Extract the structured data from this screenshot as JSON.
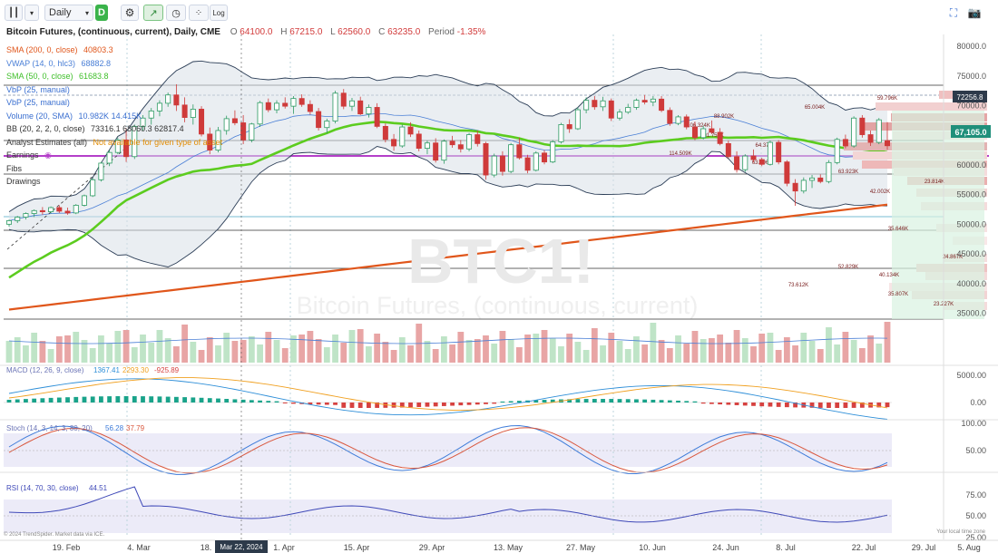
{
  "toolbar": {
    "interval": "Daily",
    "d_badge": "D",
    "log_label": "Log"
  },
  "header": {
    "symbol_title": "Bitcoin Futures, (continuous, current), Daily, CME",
    "o_label": "O",
    "o_value": "64100.0",
    "h_label": "H",
    "h_value": "67215.0",
    "l_label": "L",
    "l_value": "62560.0",
    "c_label": "C",
    "c_value": "63235.0",
    "period_label": "Period",
    "period_value": "-1.35%"
  },
  "legend": [
    {
      "name": "SMA (200, 0, close)",
      "values": "40803.3",
      "color": "#e0561b"
    },
    {
      "name": "VWAP (14, 0, hlc3)",
      "values": "68882.8",
      "color": "#4a7fd6"
    },
    {
      "name": "SMA (50, 0, close)",
      "values": "61683.8",
      "color": "#3fbf2a"
    },
    {
      "name": "VbP (25, manual)",
      "values": "",
      "color": "#3a6fd0"
    },
    {
      "name": "VbP (25, manual)",
      "values": "",
      "color": "#3a6fd0"
    },
    {
      "name": "Volume (20, SMA)",
      "values": "10.982K 14.415K",
      "color": "#3a6fd0"
    },
    {
      "name": "BB (20, 2, 2, 0, close)",
      "values": "73316.1 68060.3 62817.4",
      "color": "#333"
    },
    {
      "name": "Analyst Estimates (all)",
      "values": "Not available for given type of asset",
      "color": "#333",
      "value_color": "#e08a00"
    },
    {
      "name": "Earnings",
      "values": "",
      "color": "#333"
    },
    {
      "name": "Fibs",
      "values": "",
      "color": "#333"
    },
    {
      "name": "Drawings",
      "values": "",
      "color": "#333"
    }
  ],
  "watermark": {
    "ticker": "BTC1!",
    "name": "Bitcoin Futures, (continuous, current)"
  },
  "chart_data": {
    "type": "candlestick",
    "series": [
      {
        "name": "Price",
        "ohlc": [
          [
            50000,
            50800,
            49600,
            50600
          ],
          [
            50600,
            51400,
            50200,
            51200
          ],
          [
            51200,
            52000,
            50800,
            51800
          ],
          [
            51800,
            52500,
            51200,
            52300
          ],
          [
            52300,
            52900,
            51600,
            52100
          ],
          [
            52100,
            53000,
            51800,
            52800
          ],
          [
            52800,
            53200,
            51900,
            52200
          ],
          [
            52200,
            52800,
            51600,
            51900
          ],
          [
            51900,
            53400,
            51700,
            53200
          ],
          [
            53200,
            55000,
            53000,
            54800
          ],
          [
            54800,
            57800,
            54600,
            57500
          ],
          [
            57500,
            60500,
            57200,
            60300
          ],
          [
            60300,
            62500,
            59800,
            62100
          ],
          [
            62100,
            64600,
            61800,
            64200
          ],
          [
            64200,
            66200,
            60500,
            61400
          ],
          [
            61400,
            66800,
            61000,
            66500
          ],
          [
            66500,
            68400,
            65800,
            67900
          ],
          [
            67900,
            69600,
            66800,
            69100
          ],
          [
            69100,
            70900,
            68200,
            70400
          ],
          [
            70400,
            72200,
            69800,
            71800
          ],
          [
            71800,
            73600,
            69100,
            70100
          ],
          [
            70100,
            71400,
            67200,
            68000
          ],
          [
            68000,
            70200,
            66800,
            69400
          ],
          [
            69400,
            69900,
            64800,
            65200
          ],
          [
            65200,
            66300,
            61800,
            62500
          ],
          [
            62500,
            66400,
            62100,
            65800
          ],
          [
            65800,
            68300,
            65100,
            67800
          ],
          [
            67800,
            69200,
            66700,
            67100
          ],
          [
            67100,
            68400,
            63500,
            64200
          ],
          [
            64200,
            67100,
            63800,
            66900
          ],
          [
            66900,
            70800,
            66400,
            70500
          ],
          [
            70500,
            71200,
            68900,
            69300
          ],
          [
            69300,
            70900,
            68700,
            70400
          ],
          [
            70400,
            71400,
            69500,
            69900
          ],
          [
            69900,
            71600,
            68600,
            71200
          ],
          [
            71200,
            71900,
            69800,
            70200
          ],
          [
            70200,
            70900,
            68500,
            69000
          ],
          [
            69000,
            69600,
            65800,
            66300
          ],
          [
            66300,
            67800,
            65300,
            67400
          ],
          [
            67400,
            72500,
            67000,
            72100
          ],
          [
            72100,
            72800,
            69400,
            69900
          ],
          [
            69900,
            71300,
            69100,
            70800
          ],
          [
            70800,
            71500,
            68400,
            68600
          ],
          [
            68600,
            70200,
            68000,
            69700
          ],
          [
            69700,
            70400,
            66200,
            66500
          ],
          [
            66500,
            67000,
            63800,
            64300
          ],
          [
            64300,
            65200,
            62400,
            63200
          ],
          [
            63200,
            66800,
            62900,
            66400
          ],
          [
            66400,
            67200,
            64700,
            65200
          ],
          [
            65200,
            65800,
            62300,
            62800
          ],
          [
            62800,
            64100,
            61800,
            63700
          ],
          [
            63700,
            64500,
            60400,
            60800
          ],
          [
            60800,
            64300,
            60200,
            64000
          ],
          [
            64000,
            64900,
            62900,
            63400
          ],
          [
            63400,
            64200,
            62100,
            62700
          ],
          [
            62700,
            65400,
            62300,
            65100
          ],
          [
            65100,
            65800,
            63100,
            63600
          ],
          [
            63600,
            63900,
            57500,
            58300
          ],
          [
            58300,
            61900,
            57900,
            61500
          ],
          [
            61500,
            62300,
            58200,
            58900
          ],
          [
            58900,
            63700,
            58600,
            63400
          ],
          [
            63400,
            64600,
            60900,
            61200
          ],
          [
            61200,
            61700,
            58600,
            59100
          ],
          [
            59100,
            62300,
            58900,
            62000
          ],
          [
            62000,
            62500,
            60100,
            60500
          ],
          [
            60500,
            64200,
            60300,
            63900
          ],
          [
            63900,
            67100,
            63600,
            66800
          ],
          [
            66800,
            67700,
            65400,
            66100
          ],
          [
            66100,
            69700,
            65900,
            69300
          ],
          [
            69300,
            71400,
            68700,
            70900
          ],
          [
            70900,
            71600,
            69300,
            69800
          ],
          [
            69800,
            71500,
            69100,
            70800
          ],
          [
            70800,
            71200,
            67400,
            67900
          ],
          [
            67900,
            69400,
            67500,
            68900
          ],
          [
            68900,
            70300,
            68600,
            69700
          ],
          [
            69700,
            71200,
            69300,
            70900
          ],
          [
            70900,
            71800,
            70200,
            70600
          ],
          [
            70600,
            71600,
            69900,
            71100
          ],
          [
            71100,
            71600,
            68900,
            69200
          ],
          [
            69200,
            69700,
            66600,
            67000
          ],
          [
            67000,
            68400,
            66700,
            68100
          ],
          [
            68100,
            68500,
            66000,
            66400
          ],
          [
            66400,
            67300,
            64200,
            64600
          ],
          [
            64600,
            66600,
            64300,
            66100
          ],
          [
            66100,
            67500,
            65200,
            65500
          ],
          [
            65500,
            66200,
            63300,
            63600
          ],
          [
            63600,
            64100,
            61100,
            61400
          ],
          [
            61400,
            62300,
            58700,
            59200
          ],
          [
            59200,
            61800,
            58800,
            61500
          ],
          [
            61500,
            62600,
            60400,
            60900
          ],
          [
            60900,
            61200,
            59800,
            60100
          ],
          [
            60100,
            64100,
            59900,
            63800
          ],
          [
            63800,
            64200,
            60100,
            60500
          ],
          [
            60500,
            60800,
            56400,
            56900
          ],
          [
            56900,
            57600,
            53100,
            55600
          ],
          [
            55600,
            57900,
            55200,
            57400
          ],
          [
            57400,
            58300,
            56100,
            57800
          ],
          [
            57800,
            58400,
            56900,
            57200
          ],
          [
            57200,
            60800,
            56900,
            60400
          ],
          [
            60400,
            64600,
            60100,
            64300
          ],
          [
            64300,
            65100,
            62800,
            63200
          ],
          [
            63200,
            68200,
            62900,
            67900
          ],
          [
            67900,
            68400,
            64600,
            65100
          ],
          [
            65100,
            65800,
            63200,
            63800
          ],
          [
            63800,
            67900,
            63500,
            67600
          ],
          [
            64100,
            67215,
            62560,
            63235
          ]
        ]
      },
      {
        "name": "SMA (200, 0, close)"
      },
      {
        "name": "SMA (50, 0, close)"
      },
      {
        "name": "VWAP (14, 0, hlc3)"
      },
      {
        "name": "BB (20, 2, 2, 0, close)"
      }
    ],
    "y_axis_ticks": [
      "80000.0",
      "75000.0",
      "70000.0",
      "65000.0",
      "60000.0",
      "55000.0",
      "50000.0",
      "45000.0",
      "40000.0",
      "35000.0"
    ],
    "ylim": [
      34000,
      82000
    ],
    "current_price": "67,105.0",
    "level_price": "72256.8",
    "vbp_labels": [
      "59.796K",
      "65.004K",
      "88.902K",
      "106.324K",
      "101.755K",
      "64.37K",
      "114.509K",
      "63.396K",
      "63.923K",
      "23.814K",
      "42.002K",
      "35.646K",
      "24.867K",
      "52.829K",
      "40.134K",
      "73.612K",
      "35.807K",
      "23.227K"
    ],
    "x_labels": [
      "19. Feb",
      "4. Mar",
      "18.",
      "1. Apr",
      "15. Apr",
      "29. Apr",
      "13. May",
      "27. May",
      "10. Jun",
      "24. Jun",
      "8. Jul",
      "22. Jul",
      "29. Jul",
      "5. Aug"
    ],
    "crosshair_date": "Mar 22, 2024",
    "indicators": {
      "macd": {
        "name": "MACD (12, 26, 9, close)",
        "values": [
          "1367.41",
          "2293.30",
          "-925.89"
        ],
        "ticks": [
          "5000.00",
          "0.00"
        ]
      },
      "stoch": {
        "name": "Stoch (14, 3, 14, 3, 80, 20)",
        "values": [
          "56.28",
          "37.79"
        ],
        "ticks": [
          "100.00",
          "50.00"
        ]
      },
      "rsi": {
        "name": "RSI (14, 70, 30, close)",
        "value": "44.51",
        "ticks": [
          "75.00",
          "50.00",
          "25.00"
        ]
      }
    }
  },
  "footer": {
    "copyright": "© 2024 TrendSpider. Market data via ICE.",
    "local_time": "Your local time zone"
  }
}
